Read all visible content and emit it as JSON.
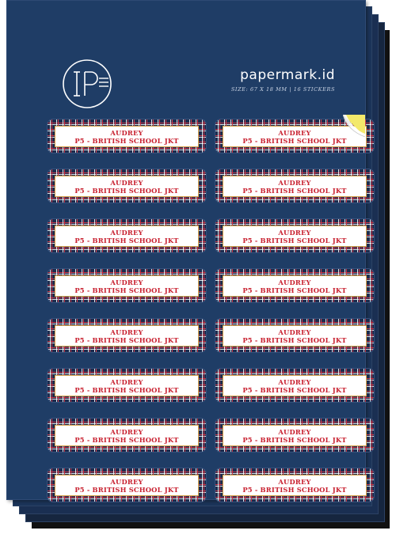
{
  "brand": {
    "name": "papermark.id",
    "spec": "SIZE: 67 X 18 MM | 16 STICKERS",
    "logo_icon": "papermark-ip-logo-icon"
  },
  "colors": {
    "sheet": "#1f3d66",
    "label_text": "#c8202f",
    "label_border": "#d7a24a",
    "peel": "#f3e96a"
  },
  "stickers": [
    {
      "name": "AUDREY",
      "school": "P5 - BRITISH SCHOOL JKT"
    },
    {
      "name": "AUDREY",
      "school": "P5 - BRITISH SCHOOL JKT"
    },
    {
      "name": "AUDREY",
      "school": "P5 - BRITISH SCHOOL JKT"
    },
    {
      "name": "AUDREY",
      "school": "P5 - BRITISH SCHOOL JKT"
    },
    {
      "name": "AUDREY",
      "school": "P5 - BRITISH SCHOOL JKT"
    },
    {
      "name": "AUDREY",
      "school": "P5 - BRITISH SCHOOL JKT"
    },
    {
      "name": "AUDREY",
      "school": "P5 - BRITISH SCHOOL JKT"
    },
    {
      "name": "AUDREY",
      "school": "P5 - BRITISH SCHOOL JKT"
    },
    {
      "name": "AUDREY",
      "school": "P5 - BRITISH SCHOOL JKT"
    },
    {
      "name": "AUDREY",
      "school": "P5 - BRITISH SCHOOL JKT"
    },
    {
      "name": "AUDREY",
      "school": "P5 - BRITISH SCHOOL JKT"
    },
    {
      "name": "AUDREY",
      "school": "P5 - BRITISH SCHOOL JKT"
    },
    {
      "name": "AUDREY",
      "school": "P5 - BRITISH SCHOOL JKT"
    },
    {
      "name": "AUDREY",
      "school": "P5 - BRITISH SCHOOL JKT"
    },
    {
      "name": "AUDREY",
      "school": "P5 - BRITISH SCHOOL JKT"
    },
    {
      "name": "AUDREY",
      "school": "P5 - BRITISH SCHOOL JKT"
    }
  ]
}
